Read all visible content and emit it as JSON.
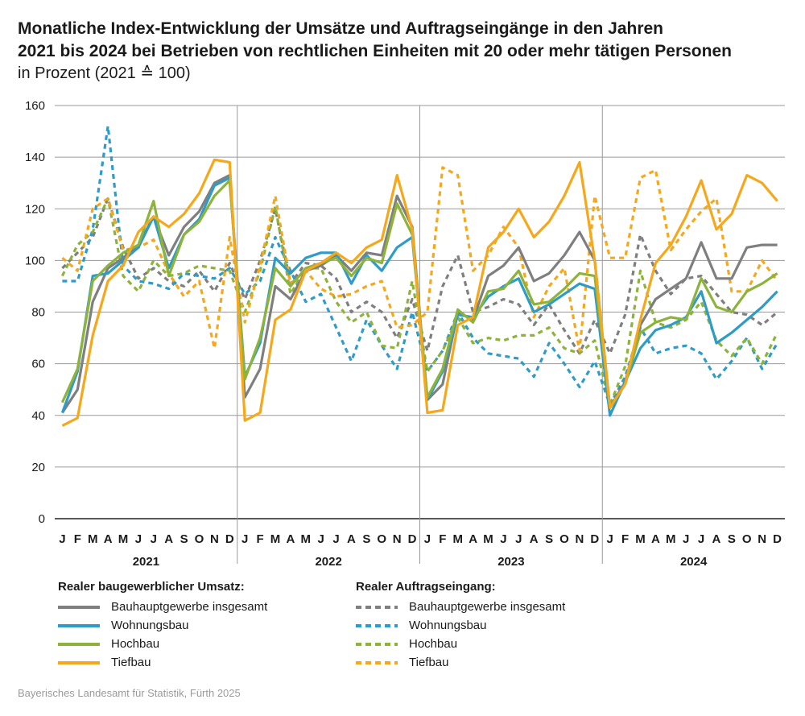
{
  "title": {
    "line1": "Monatliche Index-Entwicklung der Umsätze und Auftragseingänge in den Jahren",
    "line2": "2021 bis 2024 bei Betrieben von rechtlichen Einheiten mit 20 oder mehr tätigen Personen",
    "subtitle": "in Prozent (2021 ≙ 100)"
  },
  "legend": {
    "left_heading": "Realer baugewerblicher Umsatz:",
    "right_heading": "Realer Auftragseingang:",
    "items": [
      {
        "label": "Bauhauptgewerbe insgesamt",
        "color": "#7f7f7f"
      },
      {
        "label": "Wohnungsbau",
        "color": "#2f9bc7"
      },
      {
        "label": "Hochbau",
        "color": "#8db33a"
      },
      {
        "label": "Tiefbau",
        "color": "#f5a81c"
      }
    ]
  },
  "source": "Bayerisches Landesamt für Statistik, Fürth 2025",
  "chart_data": {
    "type": "line",
    "ylim": [
      0,
      160
    ],
    "yticks": [
      0,
      20,
      40,
      60,
      80,
      100,
      120,
      140,
      160
    ],
    "month_labels": [
      "J",
      "F",
      "M",
      "A",
      "M",
      "J",
      "J",
      "A",
      "S",
      "O",
      "N",
      "D"
    ],
    "years": [
      "2021",
      "2022",
      "2023",
      "2024"
    ],
    "series": [
      {
        "name": "Umsatz – Bauhauptgewerbe insgesamt",
        "style": "solid",
        "color": "#7f7f7f",
        "values": [
          41,
          50,
          84,
          97,
          101,
          106,
          117,
          102,
          113,
          119,
          130,
          133,
          47,
          58,
          90,
          85,
          96,
          98,
          102,
          96,
          103,
          102,
          125,
          113,
          46,
          52,
          80,
          77,
          94,
          98,
          105,
          92,
          95,
          102,
          111,
          100,
          43,
          53,
          75,
          85,
          89,
          93,
          107,
          93,
          93,
          105,
          106,
          106
        ]
      },
      {
        "name": "Umsatz – Wohnungsbau",
        "style": "solid",
        "color": "#2f9bc7",
        "values": [
          41,
          57,
          94,
          95,
          100,
          105,
          117,
          97,
          110,
          116,
          129,
          132,
          55,
          68,
          101,
          95,
          101,
          103,
          103,
          91,
          102,
          96,
          105,
          109,
          46,
          57,
          79,
          78,
          86,
          90,
          93,
          80,
          83,
          87,
          91,
          89,
          40,
          53,
          66,
          73,
          75,
          78,
          88,
          68,
          72,
          77,
          82,
          88
        ]
      },
      {
        "name": "Umsatz – Hochbau",
        "style": "solid",
        "color": "#8db33a",
        "values": [
          45,
          58,
          92,
          98,
          103,
          106,
          123,
          94,
          110,
          115,
          125,
          131,
          54,
          70,
          97,
          90,
          97,
          99,
          101,
          94,
          101,
          99,
          122,
          110,
          47,
          58,
          81,
          76,
          88,
          89,
          96,
          83,
          84,
          89,
          95,
          94,
          43,
          52,
          72,
          76,
          78,
          77,
          93,
          82,
          80,
          88,
          91,
          95
        ]
      },
      {
        "name": "Umsatz – Tiefbau",
        "style": "solid",
        "color": "#f5a81c",
        "values": [
          36,
          39,
          71,
          92,
          98,
          111,
          117,
          113,
          118,
          126,
          139,
          138,
          38,
          41,
          77,
          81,
          96,
          99,
          103,
          99,
          105,
          108,
          133,
          112,
          41,
          42,
          75,
          78,
          105,
          111,
          120,
          109,
          115,
          125,
          138,
          100,
          43,
          52,
          77,
          99,
          106,
          117,
          131,
          112,
          118,
          133,
          130,
          123
        ]
      },
      {
        "name": "Auftragseingang – Bauhauptgewerbe insgesamt",
        "style": "dashed",
        "color": "#7f7f7f",
        "values": [
          97,
          103,
          109,
          124,
          105,
          93,
          97,
          92,
          90,
          96,
          88,
          99,
          85,
          100,
          120,
          91,
          99,
          98,
          93,
          80,
          84,
          80,
          70,
          85,
          65,
          90,
          102,
          80,
          82,
          85,
          83,
          75,
          83,
          73,
          64,
          77,
          64,
          79,
          110,
          96,
          87,
          93,
          94,
          87,
          80,
          79,
          75,
          80
        ]
      },
      {
        "name": "Auftragseingang – Wohnungsbau",
        "style": "dashed",
        "color": "#2f9bc7",
        "values": [
          92,
          92,
          112,
          152,
          98,
          92,
          91,
          89,
          95,
          94,
          93,
          97,
          87,
          92,
          109,
          96,
          84,
          87,
          74,
          61,
          77,
          67,
          58,
          80,
          57,
          65,
          80,
          70,
          64,
          63,
          62,
          55,
          68,
          60,
          51,
          61,
          44,
          55,
          74,
          64,
          66,
          67,
          64,
          54,
          61,
          70,
          58,
          68
        ]
      },
      {
        "name": "Auftragseingang – Hochbau",
        "style": "dashed",
        "color": "#8db33a",
        "values": [
          94,
          106,
          111,
          124,
          94,
          88,
          100,
          94,
          95,
          98,
          97,
          96,
          80,
          96,
          121,
          87,
          97,
          97,
          84,
          76,
          80,
          67,
          66,
          92,
          57,
          65,
          78,
          68,
          70,
          69,
          71,
          71,
          74,
          66,
          64,
          69,
          44,
          59,
          96,
          76,
          74,
          77,
          84,
          69,
          63,
          70,
          60,
          72
        ]
      },
      {
        "name": "Auftragseingang – Tiefbau",
        "style": "dashed",
        "color": "#f5a81c",
        "values": [
          101,
          96,
          120,
          124,
          104,
          105,
          108,
          95,
          86,
          92,
          66,
          109,
          76,
          98,
          125,
          91,
          96,
          89,
          86,
          87,
          90,
          92,
          74,
          75,
          80,
          136,
          133,
          96,
          102,
          113,
          105,
          78,
          90,
          97,
          65,
          125,
          101,
          101,
          132,
          135,
          104,
          112,
          119,
          124,
          88,
          88,
          100,
          92
        ]
      }
    ]
  }
}
